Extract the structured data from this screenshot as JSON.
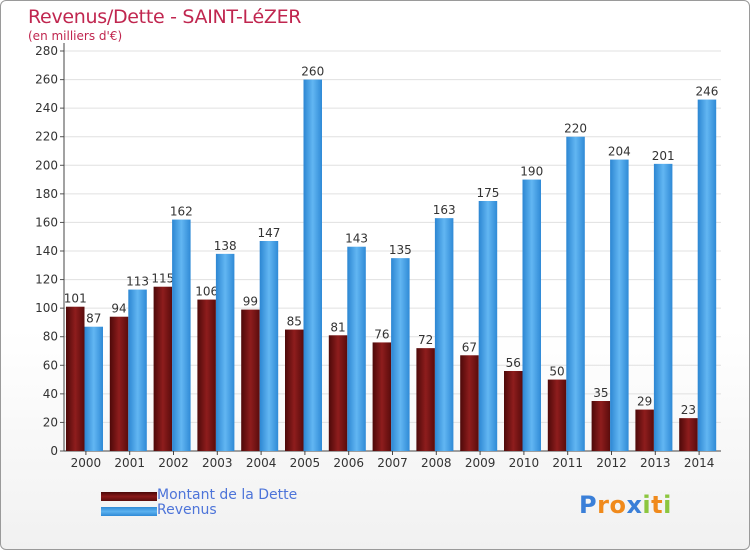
{
  "chart_data": {
    "type": "bar",
    "title": "Revenus/Dette - SAINT-LéZER",
    "subtitle": "(en milliers d'€)",
    "categories": [
      "2000",
      "2001",
      "2002",
      "2003",
      "2004",
      "2005",
      "2006",
      "2007",
      "2008",
      "2009",
      "2010",
      "2011",
      "2012",
      "2013",
      "2014"
    ],
    "series": [
      {
        "name": "Montant de la Dette",
        "color": "#7a1414",
        "values": [
          101,
          94,
          115,
          106,
          99,
          85,
          81,
          76,
          72,
          67,
          56,
          50,
          35,
          29,
          23
        ]
      },
      {
        "name": "Revenus",
        "color": "#3d9fe5",
        "values": [
          87,
          113,
          162,
          138,
          147,
          260,
          143,
          135,
          163,
          175,
          190,
          220,
          204,
          201,
          246
        ]
      }
    ],
    "ylim": [
      0,
      280
    ],
    "yticks": [
      0,
      20,
      40,
      60,
      80,
      100,
      120,
      140,
      160,
      180,
      200,
      220,
      240,
      260,
      280
    ],
    "grid": true,
    "legend_position": "bottom-left",
    "data_labels": true
  },
  "logo": {
    "letters": [
      {
        "char": "P",
        "color": "#3a7fd8"
      },
      {
        "char": "r",
        "color": "#f08a1c"
      },
      {
        "char": "o",
        "color": "#f08a1c"
      },
      {
        "char": "x",
        "color": "#3a7fd8"
      },
      {
        "char": "i",
        "color": "#8cc63f"
      },
      {
        "char": "t",
        "color": "#f08a1c"
      },
      {
        "char": "i",
        "color": "#8cc63f"
      }
    ]
  }
}
